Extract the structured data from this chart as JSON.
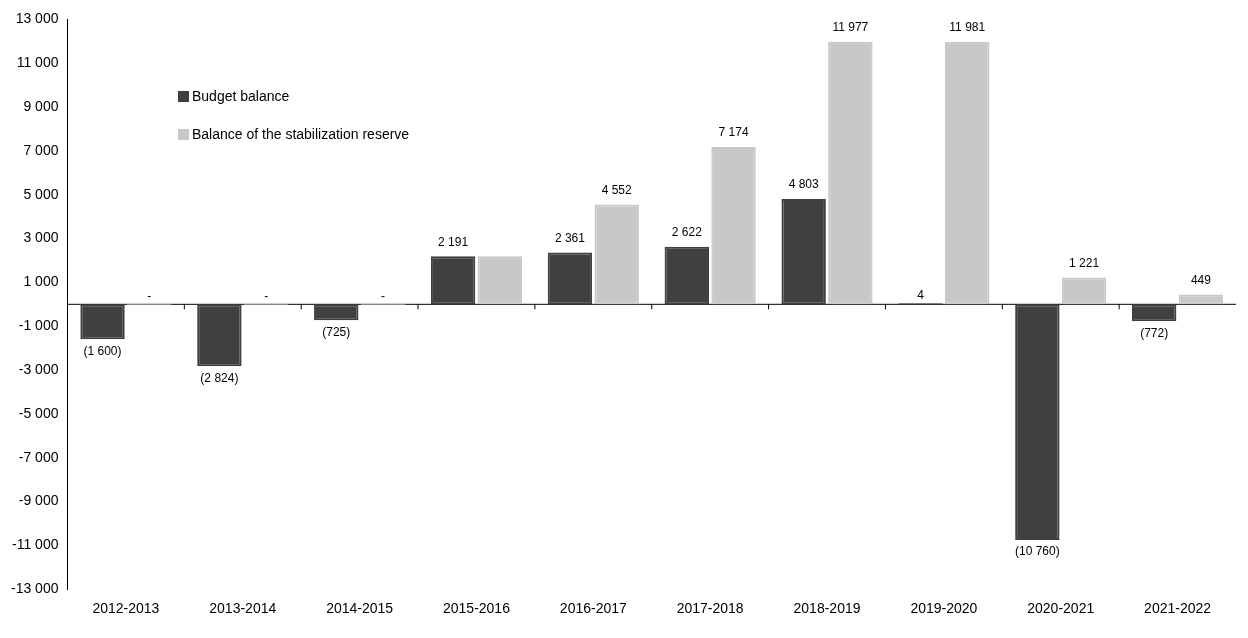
{
  "chart_data": {
    "type": "bar",
    "categories": [
      "2012-2013",
      "2013-2014",
      "2014-2015",
      "2015-2016",
      "2016-2017",
      "2017-2018",
      "2018-2019",
      "2019-2020",
      "2020-2021",
      "2021-2022"
    ],
    "series": [
      {
        "name": "Budget balance",
        "color": "#404040",
        "values": [
          -1600,
          -2824,
          -725,
          2191,
          2361,
          2622,
          4803,
          4,
          -10760,
          -772
        ],
        "value_labels": [
          "(1 600)",
          "(2 824)",
          "(725)",
          "2 191",
          "2 361",
          "2 622",
          "4 803",
          "4",
          "(10 760)",
          "(772)"
        ]
      },
      {
        "name": "Balance of the stabilization reserve",
        "color": "#c8c8c8",
        "values": [
          0,
          0,
          0,
          2191,
          4552,
          7174,
          11977,
          11981,
          1221,
          449
        ],
        "value_labels": [
          "-",
          "-",
          "-",
          null,
          "4 552",
          "7 174",
          "11 977",
          "11 981",
          "1 221",
          "449"
        ]
      }
    ],
    "ylim": [
      -13000,
      13000
    ],
    "yticks": [
      {
        "value": -13000,
        "label": "-13 000"
      },
      {
        "value": -11000,
        "label": "-11 000"
      },
      {
        "value": -9000,
        "label": "-9 000"
      },
      {
        "value": -7000,
        "label": "-7 000"
      },
      {
        "value": -5000,
        "label": "-5 000"
      },
      {
        "value": -3000,
        "label": "-3 000"
      },
      {
        "value": -1000,
        "label": "-1 000"
      },
      {
        "value": 1000,
        "label": "1 000"
      },
      {
        "value": 3000,
        "label": "3 000"
      },
      {
        "value": 5000,
        "label": "5 000"
      },
      {
        "value": 7000,
        "label": "7 000"
      },
      {
        "value": 9000,
        "label": "9 000"
      },
      {
        "value": 11000,
        "label": "11 000"
      },
      {
        "value": 13000,
        "label": "13 000"
      }
    ],
    "grid": false,
    "legend": "top left"
  }
}
